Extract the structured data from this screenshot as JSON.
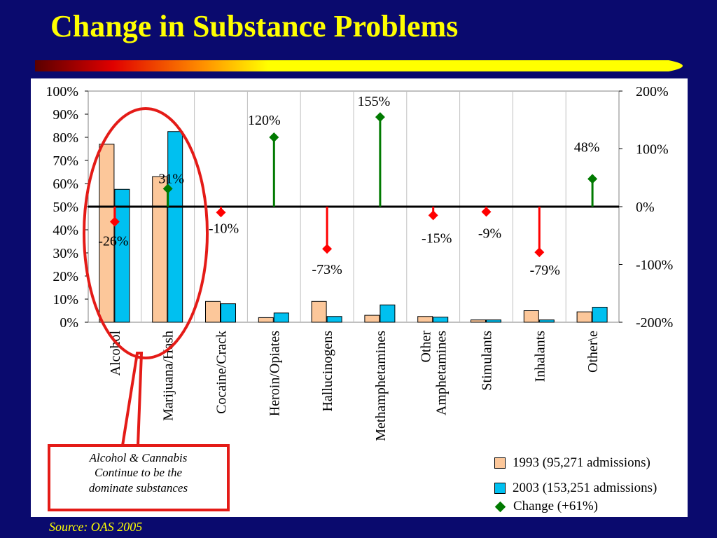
{
  "slide": {
    "title": "Change in Substance Problems",
    "source": "Source:  OAS 2005",
    "callout_lines": [
      "Alcohol & Cannabis",
      "Continue to be the",
      "dominate substances"
    ]
  },
  "colors": {
    "background": "#0a0a6e",
    "title": "#ffff00",
    "series_1993": "#fcc79a",
    "series_2003": "#00c0f0",
    "change_positive": "#007a00",
    "change_negative": "#ff0000",
    "callout": "#e41b17"
  },
  "legend": [
    {
      "label": "1993 (95,271 admissions)",
      "color": "#fcc79a",
      "shape": "square"
    },
    {
      "label": "2003 (153,251 admissions)",
      "color": "#00c0f0",
      "shape": "square"
    },
    {
      "label": "Change (+61%)",
      "color": "#007a00",
      "shape": "diamond"
    }
  ],
  "chart_data": {
    "type": "bar",
    "categories": [
      "Alcohol",
      "Marijuana/Hash",
      "Cocaine/Crack",
      "Heroin/Opiates",
      "Hallucinogens",
      "Methamphetamines",
      "Other Amphetamines",
      "Stimulants",
      "Inhalants",
      "Other\\e"
    ],
    "series": [
      {
        "name": "1993 (95,271 admissions)",
        "values": [
          77,
          63,
          9,
          2,
          9,
          3,
          2.5,
          1,
          5,
          4.5
        ],
        "axis": "left"
      },
      {
        "name": "2003 (153,251 admissions)",
        "values": [
          57.5,
          82.5,
          8,
          4,
          2.5,
          7.5,
          2.2,
          1,
          1,
          6.5
        ],
        "axis": "left"
      },
      {
        "name": "Change (+61%)",
        "type": "dropline",
        "values": [
          -26,
          31,
          -10,
          120,
          -73,
          155,
          -15,
          -9,
          -79,
          48
        ],
        "labels": [
          "-26%",
          "31%",
          "-10%",
          "120%",
          "-73%",
          "155%",
          "-15%",
          "-9%",
          "-79%",
          "48%"
        ],
        "axis": "right"
      }
    ],
    "left_axis": {
      "range": [
        0,
        100
      ],
      "ticks": [
        "0%",
        "10%",
        "20%",
        "30%",
        "40%",
        "50%",
        "60%",
        "70%",
        "80%",
        "90%",
        "100%"
      ]
    },
    "right_axis": {
      "range": [
        -200,
        200
      ],
      "ticks": [
        "-200%",
        "-100%",
        "0%",
        "100%",
        "200%"
      ]
    },
    "grid": "vertical category separators",
    "legend_position": "bottom-right"
  }
}
